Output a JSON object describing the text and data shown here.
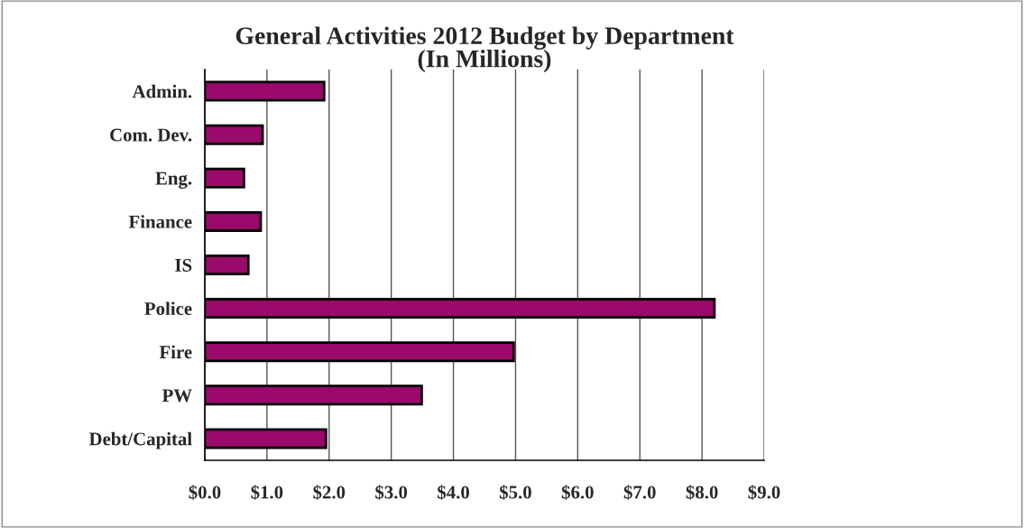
{
  "chart_data": {
    "type": "bar",
    "orientation": "horizontal",
    "title": "General Activities 2012 Budget by Department\n(In Millions)",
    "categories": [
      "Admin.",
      "Com. Dev.",
      "Eng.",
      "Finance",
      "IS",
      "Police",
      "Fire",
      "PW",
      "Debt/Capital"
    ],
    "values": [
      1.92,
      0.93,
      0.63,
      0.9,
      0.7,
      8.2,
      4.97,
      3.49,
      1.95
    ],
    "color": "#9a0a6a",
    "xlim": [
      0,
      9
    ],
    "xticks": [
      {
        "value": 0,
        "label": "$0.0"
      },
      {
        "value": 1,
        "label": "$1.0"
      },
      {
        "value": 2,
        "label": "$2.0"
      },
      {
        "value": 3,
        "label": "$3.0"
      },
      {
        "value": 4,
        "label": "$4.0"
      },
      {
        "value": 5,
        "label": "$5.0"
      },
      {
        "value": 6,
        "label": "$6.0"
      },
      {
        "value": 7,
        "label": "$7.0"
      },
      {
        "value": 8,
        "label": "$8.0"
      },
      {
        "value": 9,
        "label": "$9.0"
      }
    ],
    "grid": "x",
    "legend": false
  }
}
